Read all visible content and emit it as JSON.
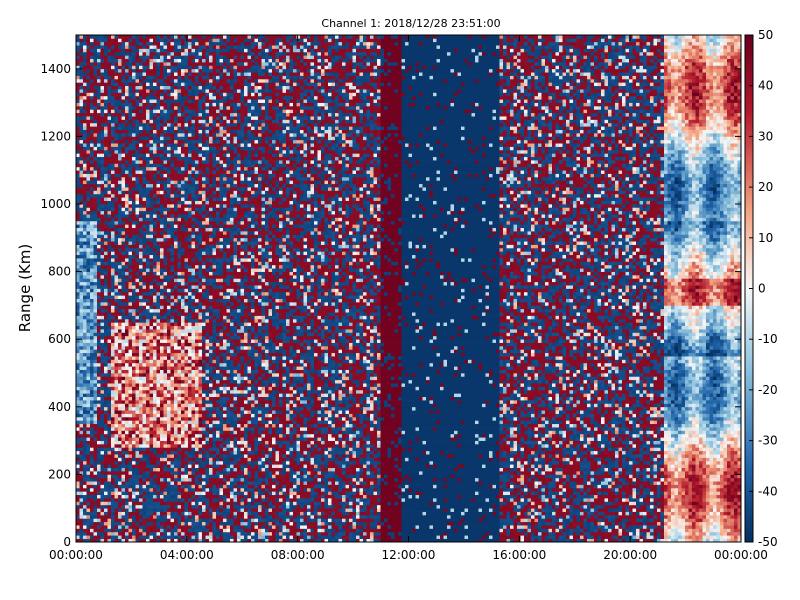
{
  "chart_data": {
    "type": "heatmap",
    "title": "Channel 1: 2018/12/28 23:51:00",
    "xlabel": "",
    "ylabel": "Range (Km)",
    "x_ticks": [
      "00:00:00",
      "04:00:00",
      "08:00:00",
      "12:00:00",
      "16:00:00",
      "20:00:00",
      "00:00:00"
    ],
    "xlim_hours": [
      0,
      24
    ],
    "y_ticks": [
      0,
      200,
      400,
      600,
      800,
      1000,
      1200,
      1400
    ],
    "ylim": [
      0,
      1500
    ],
    "colorbar": {
      "ticks": [
        50,
        40,
        30,
        20,
        10,
        0,
        -10,
        -20,
        -30,
        -40,
        -50
      ],
      "range": [
        -50,
        50
      ],
      "colormap": "RdBu_r",
      "colors": {
        "min": "#053061",
        "low": "#2166ac",
        "mid_low": "#92c5de",
        "mid": "#f7f7f7",
        "mid_high": "#f4a582",
        "high": "#b2182b",
        "max": "#67001f"
      }
    },
    "regions": [
      {
        "from_hours": 0.0,
        "to_hours": 5.3,
        "description": "mixed red/blue noise with warm patches between 300 and 700 Km"
      },
      {
        "from_hours": 5.3,
        "to_hours": 11.0,
        "description": "banded noise, mostly dark blue and dark red columns"
      },
      {
        "from_hours": 11.0,
        "to_hours": 11.8,
        "description": "dark red band"
      },
      {
        "from_hours": 11.8,
        "to_hours": 15.3,
        "description": "dark blue band"
      },
      {
        "from_hours": 15.3,
        "to_hours": 21.2,
        "description": "mixed red/blue noise"
      },
      {
        "from_hours": 21.2,
        "to_hours": 24.0,
        "description": "smooth structured field with light blues and pinks"
      }
    ]
  }
}
